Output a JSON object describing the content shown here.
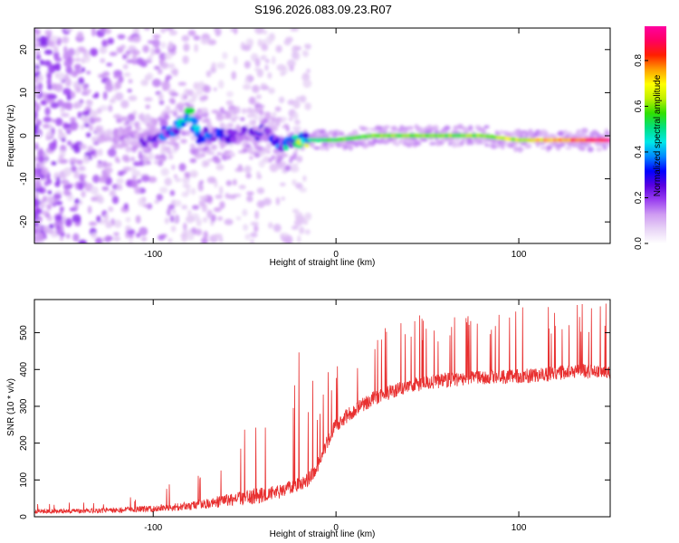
{
  "title": "S196.2026.083.09.23.R07",
  "chart_data": [
    {
      "type": "heatmap",
      "xlabel": "Height of straight line (km)",
      "ylabel": "Frequency (Hz)",
      "xlim": [
        -165,
        150
      ],
      "ylim": [
        -25,
        25
      ],
      "xticks": [
        -100,
        0,
        100
      ],
      "yticks": [
        -20,
        -10,
        0,
        10,
        20
      ],
      "colorbar": {
        "label": "Normalized spectral amplitude",
        "range": [
          0,
          0.95
        ],
        "ticks": [
          0.0,
          0.2,
          0.4,
          0.6,
          0.8
        ],
        "colors": [
          "#ffffff",
          "#e8d4f6",
          "#cf9cf2",
          "#9a3ff0",
          "#5a00e0",
          "#0000ff",
          "#0088ff",
          "#00e8e8",
          "#00e080",
          "#30e000",
          "#c0f000",
          "#ffff00",
          "#ffa000",
          "#ff2000",
          "#ff0060",
          "#ff00a0"
        ]
      },
      "description_ridge": {
        "x": [
          -165,
          -120,
          -100,
          -90,
          -85,
          -80,
          -75,
          -60,
          -40,
          -30,
          -20,
          0,
          20,
          50,
          80,
          100,
          130,
          150
        ],
        "freq": [
          0,
          0,
          -1,
          1,
          3,
          5,
          0,
          0,
          1,
          -2,
          -1,
          -1,
          0,
          0,
          0,
          -1,
          -1,
          -1
        ],
        "amplitude": [
          0.05,
          0.1,
          0.2,
          0.35,
          0.4,
          0.45,
          0.3,
          0.25,
          0.2,
          0.3,
          0.5,
          0.55,
          0.6,
          0.6,
          0.62,
          0.65,
          0.8,
          0.95
        ]
      }
    },
    {
      "type": "line",
      "xlabel": "Height of straight line (km)",
      "ylabel": "SNR (10 * v/v)",
      "xlim": [
        -165,
        150
      ],
      "ylim": [
        0,
        590
      ],
      "xticks": [
        -100,
        0,
        100
      ],
      "yticks": [
        0,
        100,
        200,
        300,
        400,
        500
      ],
      "color": "#e83030",
      "series": [
        {
          "name": "SNR",
          "x": [
            -165,
            -140,
            -120,
            -100,
            -90,
            -80,
            -70,
            -60,
            -50,
            -40,
            -30,
            -20,
            -15,
            -10,
            -5,
            0,
            10,
            20,
            30,
            40,
            50,
            60,
            70,
            80,
            90,
            100,
            110,
            120,
            130,
            140,
            150
          ],
          "baseline": [
            15,
            15,
            18,
            22,
            25,
            30,
            35,
            45,
            50,
            60,
            70,
            90,
            100,
            140,
            200,
            250,
            290,
            320,
            340,
            355,
            365,
            370,
            375,
            380,
            380,
            380,
            385,
            390,
            395,
            395,
            395
          ],
          "peaks": [
            35,
            40,
            50,
            70,
            120,
            140,
            120,
            200,
            270,
            300,
            330,
            490,
            390,
            360,
            390,
            420,
            470,
            520,
            540,
            560,
            560,
            555,
            555,
            560,
            570,
            570,
            575,
            575,
            580,
            585,
            590
          ]
        }
      ]
    }
  ]
}
